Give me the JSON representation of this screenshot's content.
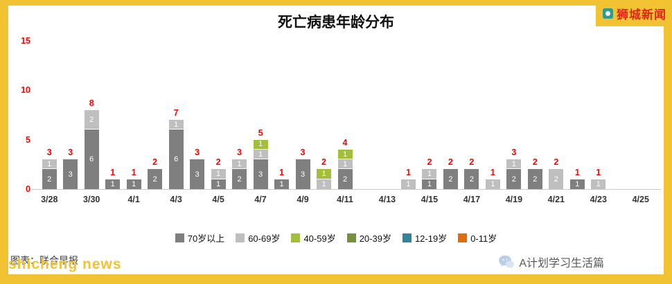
{
  "page": {
    "brand": "狮城新闻",
    "watermark": "shicheng news",
    "source_note": "图表：联合早报",
    "footer_right": "A计划学习生活篇",
    "colors": {
      "frame": "#F1C232",
      "brand": "#E02619",
      "total": "#FF0000",
      "baseline": "#C9C9C9"
    }
  },
  "chart_data": {
    "type": "bar",
    "stacked": true,
    "title": "死亡病患年龄分布",
    "xlabel": "",
    "ylabel": "",
    "ylim": [
      0,
      15
    ],
    "yticks": [
      0,
      5,
      10,
      15
    ],
    "grid": false,
    "legend_position": "bottom",
    "xticks": [
      "3/28",
      "3/30",
      "4/1",
      "4/3",
      "4/5",
      "4/7",
      "4/9",
      "4/11",
      "4/13",
      "4/15",
      "4/17",
      "4/19",
      "4/21",
      "4/23",
      "4/25"
    ],
    "legend": [
      {
        "label": "70岁以上",
        "color": "#7F7F7F"
      },
      {
        "label": "60-69岁",
        "color": "#BFBFBF"
      },
      {
        "label": "40-59岁",
        "color": "#A3BE3A"
      },
      {
        "label": "20-39岁",
        "color": "#74923C"
      },
      {
        "label": "12-19岁",
        "color": "#31849B"
      },
      {
        "label": "0-11岁",
        "color": "#E36C0A"
      }
    ],
    "bars": [
      {
        "date": "3/28",
        "day": 0,
        "total": 3,
        "segments": [
          {
            "group": "70岁以上",
            "value": 2
          },
          {
            "group": "60-69岁",
            "value": 1
          }
        ]
      },
      {
        "date": "3/29",
        "day": 1,
        "total": 3,
        "segments": [
          {
            "group": "70岁以上",
            "value": 3
          }
        ]
      },
      {
        "date": "3/30",
        "day": 2,
        "total": 8,
        "segments": [
          {
            "group": "70岁以上",
            "value": 6
          },
          {
            "group": "60-69岁",
            "value": 2
          }
        ]
      },
      {
        "date": "3/31",
        "day": 3,
        "total": 1,
        "segments": [
          {
            "group": "70岁以上",
            "value": 1
          }
        ]
      },
      {
        "date": "4/1",
        "day": 4,
        "total": 1,
        "segments": [
          {
            "group": "70岁以上",
            "value": 1
          }
        ]
      },
      {
        "date": "4/2",
        "day": 5,
        "total": 2,
        "segments": [
          {
            "group": "70岁以上",
            "value": 2
          }
        ]
      },
      {
        "date": "4/3",
        "day": 6,
        "total": 7,
        "segments": [
          {
            "group": "70岁以上",
            "value": 6
          },
          {
            "group": "60-69岁",
            "value": 1
          }
        ]
      },
      {
        "date": "4/4",
        "day": 7,
        "total": 3,
        "segments": [
          {
            "group": "70岁以上",
            "value": 3
          }
        ]
      },
      {
        "date": "4/5",
        "day": 8,
        "total": 2,
        "segments": [
          {
            "group": "70岁以上",
            "value": 1
          },
          {
            "group": "60-69岁",
            "value": 1
          }
        ]
      },
      {
        "date": "4/6",
        "day": 9,
        "total": 3,
        "segments": [
          {
            "group": "70岁以上",
            "value": 2
          },
          {
            "group": "60-69岁",
            "value": 1
          }
        ]
      },
      {
        "date": "4/7",
        "day": 10,
        "total": 5,
        "segments": [
          {
            "group": "70岁以上",
            "value": 3
          },
          {
            "group": "60-69岁",
            "value": 1
          },
          {
            "group": "40-59岁",
            "value": 1
          }
        ]
      },
      {
        "date": "4/8",
        "day": 11,
        "total": 1,
        "segments": [
          {
            "group": "70岁以上",
            "value": 1
          }
        ]
      },
      {
        "date": "4/9",
        "day": 12,
        "total": 3,
        "segments": [
          {
            "group": "70岁以上",
            "value": 3
          }
        ]
      },
      {
        "date": "4/10",
        "day": 13,
        "total": 2,
        "segments": [
          {
            "group": "60-69岁",
            "value": 1
          },
          {
            "group": "40-59岁",
            "value": 1
          }
        ]
      },
      {
        "date": "4/11",
        "day": 14,
        "total": 4,
        "segments": [
          {
            "group": "70岁以上",
            "value": 2
          },
          {
            "group": "60-69岁",
            "value": 1
          },
          {
            "group": "40-59岁",
            "value": 1
          }
        ]
      },
      {
        "date": "4/14",
        "day": 17,
        "total": 1,
        "segments": [
          {
            "group": "60-69岁",
            "value": 1
          }
        ]
      },
      {
        "date": "4/15",
        "day": 18,
        "total": 2,
        "segments": [
          {
            "group": "70岁以上",
            "value": 1
          },
          {
            "group": "60-69岁",
            "value": 1
          }
        ]
      },
      {
        "date": "4/16",
        "day": 19,
        "total": 2,
        "segments": [
          {
            "group": "70岁以上",
            "value": 2
          }
        ]
      },
      {
        "date": "4/17",
        "day": 20,
        "total": 2,
        "segments": [
          {
            "group": "70岁以上",
            "value": 2
          }
        ]
      },
      {
        "date": "4/18",
        "day": 21,
        "total": 1,
        "segments": [
          {
            "group": "60-69岁",
            "value": 1
          }
        ]
      },
      {
        "date": "4/19",
        "day": 22,
        "total": 3,
        "segments": [
          {
            "group": "70岁以上",
            "value": 2
          },
          {
            "group": "60-69岁",
            "value": 1
          }
        ]
      },
      {
        "date": "4/20",
        "day": 23,
        "total": 2,
        "segments": [
          {
            "group": "70岁以上",
            "value": 2
          }
        ]
      },
      {
        "date": "4/21",
        "day": 24,
        "total": 2,
        "segments": [
          {
            "group": "60-69岁",
            "value": 2
          }
        ]
      },
      {
        "date": "4/22",
        "day": 25,
        "total": 1,
        "segments": [
          {
            "group": "70岁以上",
            "value": 1
          }
        ]
      },
      {
        "date": "4/23",
        "day": 26,
        "total": 1,
        "segments": [
          {
            "group": "60-69岁",
            "value": 1
          }
        ]
      }
    ]
  }
}
